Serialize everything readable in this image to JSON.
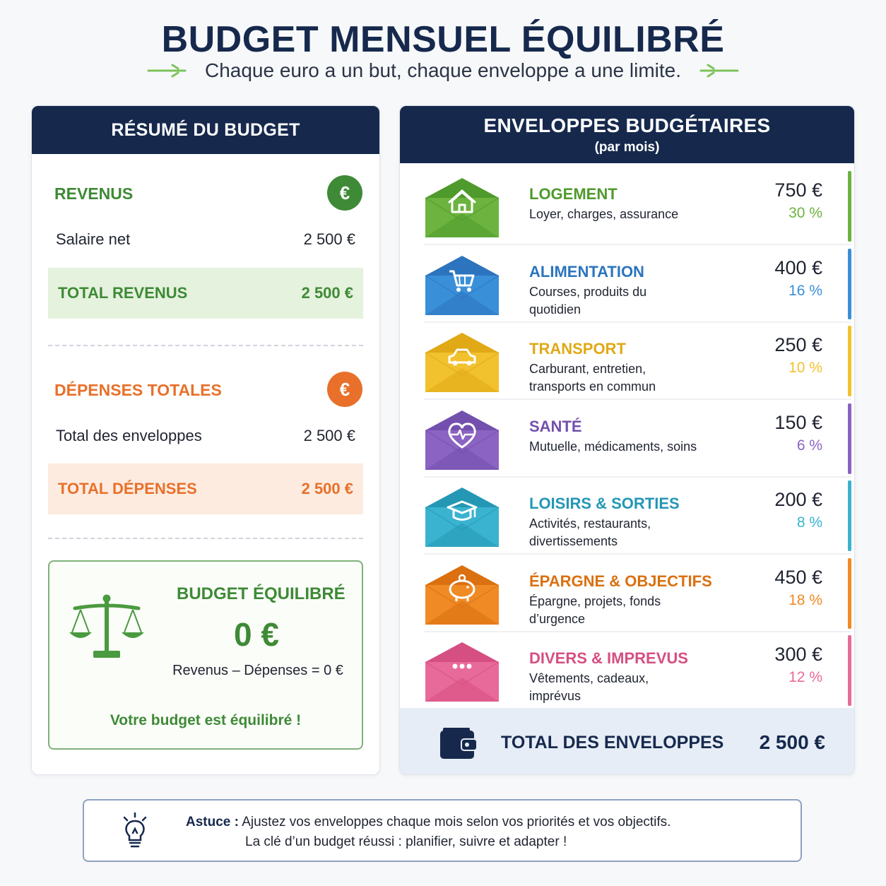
{
  "header": {
    "title": "BUDGET MENSUEL ÉQUILIBRÉ",
    "subtitle": "Chaque euro a un but, chaque enveloppe a une limite."
  },
  "summary": {
    "heading": "RÉSUMÉ DU BUDGET",
    "income": {
      "label": "REVENUS",
      "coin": "€",
      "line_label": "Salaire net",
      "line_value": "2 500 €",
      "total_label": "TOTAL REVENUS",
      "total_value": "2 500 €"
    },
    "expenses": {
      "label": "DÉPENSES TOTALES",
      "coin": "€",
      "line_label": "Total des enveloppes",
      "line_value": "2 500 €",
      "total_label": "TOTAL DÉPENSES",
      "total_value": "2 500 €"
    },
    "balance": {
      "title": "BUDGET ÉQUILIBRÉ",
      "value": "0 €",
      "formula": "Revenus – Dépenses = 0 €",
      "message": "Votre budget est équilibré !",
      "icon": "scale-icon"
    }
  },
  "envelopes": {
    "heading": "ENVELOPPES BUDGÉTAIRES",
    "subheading": "(par mois)",
    "items": [
      {
        "name": "LOGEMENT",
        "desc": "Loyer, charges, assurance",
        "amount": "750 €",
        "pct": "30 %",
        "color": "#6cb33f",
        "dark": "#4f9a2c",
        "icon": "house-icon"
      },
      {
        "name": "ALIMENTATION",
        "desc": "Courses, produits du quotidien",
        "amount": "400 €",
        "pct": "16 %",
        "color": "#3a8fd9",
        "dark": "#2c74bd",
        "icon": "cart-icon"
      },
      {
        "name": "TRANSPORT",
        "desc": "Carburant, entretien, transports en commun",
        "amount": "250 €",
        "pct": "10 %",
        "color": "#f2c12e",
        "dark": "#e0a915",
        "icon": "car-icon"
      },
      {
        "name": "SANTÉ",
        "desc": "Mutuelle, médicaments, soins",
        "amount": "150 €",
        "pct": "6 %",
        "color": "#8b63c2",
        "dark": "#7350ad",
        "icon": "heart-pulse-icon"
      },
      {
        "name": "LOISIRS & SORTIES",
        "desc": "Activités, restaurants, divertissements",
        "amount": "200 €",
        "pct": "8 %",
        "color": "#3ab3d0",
        "dark": "#2497b5",
        "icon": "graduation-cap-icon"
      },
      {
        "name": "ÉPARGNE & OBJECTIFS",
        "desc": "Épargne, projets, fonds d’urgence",
        "amount": "450 €",
        "pct": "18 %",
        "color": "#f08a24",
        "dark": "#da7010",
        "icon": "piggy-bank-icon"
      },
      {
        "name": "DIVERS & IMPREVUS",
        "desc": "Vêtements, cadeaux, imprévus",
        "amount": "300 €",
        "pct": "12 %",
        "color": "#e86a9a",
        "dark": "#d54f82",
        "icon": "dots-icon"
      }
    ],
    "total_label": "TOTAL DES ENVELOPPES",
    "total_value": "2 500 €"
  },
  "tip": {
    "label": "Astuce :",
    "line1": "Ajustez vos enveloppes chaque mois selon vos priorités et vos objectifs.",
    "line2": "La clé d’un budget réussi : planifier, suivre et adapter !"
  },
  "colors": {
    "navy": "#16294d",
    "green": "#3e8a36",
    "orange": "#e8702a",
    "income_bg": "#e5f2de",
    "expense_bg": "#fdebe0"
  }
}
